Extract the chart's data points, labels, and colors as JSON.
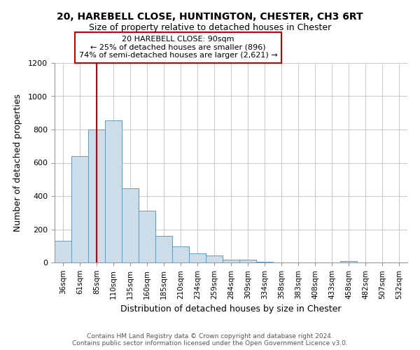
{
  "title1": "20, HAREBELL CLOSE, HUNTINGTON, CHESTER, CH3 6RT",
  "title2": "Size of property relative to detached houses in Chester",
  "xlabel": "Distribution of detached houses by size in Chester",
  "ylabel": "Number of detached properties",
  "categories": [
    "36sqm",
    "61sqm",
    "85sqm",
    "110sqm",
    "135sqm",
    "160sqm",
    "185sqm",
    "210sqm",
    "234sqm",
    "259sqm",
    "284sqm",
    "309sqm",
    "334sqm",
    "358sqm",
    "383sqm",
    "408sqm",
    "433sqm",
    "458sqm",
    "482sqm",
    "507sqm",
    "532sqm"
  ],
  "values": [
    130,
    640,
    800,
    855,
    445,
    310,
    160,
    95,
    55,
    42,
    18,
    18,
    5,
    0,
    0,
    0,
    0,
    8,
    0,
    0,
    0
  ],
  "bar_color": "#ccdce8",
  "bar_edge_color": "#6699bb",
  "property_label": "20 HAREBELL CLOSE: 90sqm",
  "annotation_line1": "← 25% of detached houses are smaller (896)",
  "annotation_line2": "74% of semi-detached houses are larger (2,621) →",
  "vline_color": "#cc0000",
  "vline_position": 2,
  "ylim": [
    0,
    1200
  ],
  "yticks": [
    0,
    200,
    400,
    600,
    800,
    1000,
    1200
  ],
  "footer1": "Contains HM Land Registry data © Crown copyright and database right 2024.",
  "footer2": "Contains public sector information licensed under the Open Government Licence v3.0.",
  "background_color": "#ffffff",
  "grid_color": "#cccccc"
}
